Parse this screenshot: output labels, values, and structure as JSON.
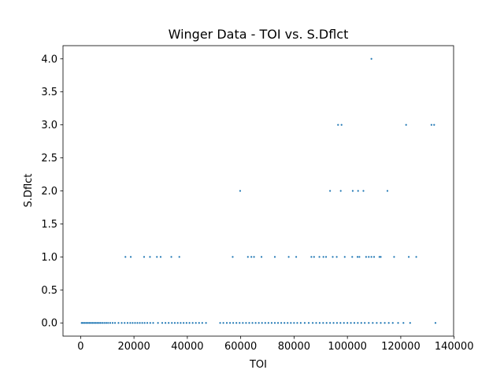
{
  "chart_data": {
    "type": "scatter",
    "title": "Winger Data - TOI vs. S.Dflct",
    "xlabel": "TOI",
    "ylabel": "S.Dflct",
    "xlim": [
      -6600,
      139800
    ],
    "ylim": [
      -0.2,
      4.2
    ],
    "xticks": [
      0,
      20000,
      40000,
      60000,
      80000,
      100000,
      120000,
      140000
    ],
    "xtick_labels": [
      "0",
      "20000",
      "40000",
      "60000",
      "80000",
      "100000",
      "120000",
      "140000"
    ],
    "yticks": [
      0.0,
      0.5,
      1.0,
      1.5,
      2.0,
      2.5,
      3.0,
      3.5,
      4.0
    ],
    "ytick_labels": [
      "0.0",
      "0.5",
      "1.0",
      "1.5",
      "2.0",
      "2.5",
      "3.0",
      "3.5",
      "4.0"
    ],
    "grid": false,
    "marker_color": "#1f77b4",
    "points": [
      {
        "x": 109000,
        "y": 4
      },
      {
        "x": 96500,
        "y": 3
      },
      {
        "x": 97800,
        "y": 3
      },
      {
        "x": 122000,
        "y": 3
      },
      {
        "x": 131500,
        "y": 3
      },
      {
        "x": 132500,
        "y": 3
      },
      {
        "x": 59800,
        "y": 2
      },
      {
        "x": 93500,
        "y": 2
      },
      {
        "x": 97500,
        "y": 2
      },
      {
        "x": 102000,
        "y": 2
      },
      {
        "x": 104000,
        "y": 2
      },
      {
        "x": 106000,
        "y": 2
      },
      {
        "x": 115000,
        "y": 2
      },
      {
        "x": 16800,
        "y": 1
      },
      {
        "x": 18800,
        "y": 1
      },
      {
        "x": 23800,
        "y": 1
      },
      {
        "x": 26000,
        "y": 1
      },
      {
        "x": 28600,
        "y": 1
      },
      {
        "x": 30000,
        "y": 1
      },
      {
        "x": 34000,
        "y": 1
      },
      {
        "x": 37000,
        "y": 1
      },
      {
        "x": 57000,
        "y": 1
      },
      {
        "x": 62700,
        "y": 1
      },
      {
        "x": 64000,
        "y": 1
      },
      {
        "x": 65000,
        "y": 1
      },
      {
        "x": 67800,
        "y": 1
      },
      {
        "x": 72800,
        "y": 1
      },
      {
        "x": 78000,
        "y": 1
      },
      {
        "x": 80800,
        "y": 1
      },
      {
        "x": 86500,
        "y": 1
      },
      {
        "x": 87500,
        "y": 1
      },
      {
        "x": 89500,
        "y": 1
      },
      {
        "x": 91000,
        "y": 1
      },
      {
        "x": 92000,
        "y": 1
      },
      {
        "x": 94500,
        "y": 1
      },
      {
        "x": 96000,
        "y": 1
      },
      {
        "x": 99000,
        "y": 1
      },
      {
        "x": 101800,
        "y": 1
      },
      {
        "x": 103800,
        "y": 1
      },
      {
        "x": 104500,
        "y": 1
      },
      {
        "x": 107000,
        "y": 1
      },
      {
        "x": 108000,
        "y": 1
      },
      {
        "x": 109000,
        "y": 1
      },
      {
        "x": 110000,
        "y": 1
      },
      {
        "x": 112000,
        "y": 1
      },
      {
        "x": 112500,
        "y": 1
      },
      {
        "x": 117500,
        "y": 1
      },
      {
        "x": 123000,
        "y": 1
      },
      {
        "x": 125800,
        "y": 1
      },
      {
        "x": 400,
        "y": 0
      },
      {
        "x": 900,
        "y": 0
      },
      {
        "x": 1500,
        "y": 0
      },
      {
        "x": 2100,
        "y": 0
      },
      {
        "x": 2700,
        "y": 0
      },
      {
        "x": 3300,
        "y": 0
      },
      {
        "x": 3900,
        "y": 0
      },
      {
        "x": 4500,
        "y": 0
      },
      {
        "x": 5100,
        "y": 0
      },
      {
        "x": 5700,
        "y": 0
      },
      {
        "x": 6300,
        "y": 0
      },
      {
        "x": 6900,
        "y": 0
      },
      {
        "x": 7500,
        "y": 0
      },
      {
        "x": 8200,
        "y": 0
      },
      {
        "x": 8900,
        "y": 0
      },
      {
        "x": 9600,
        "y": 0
      },
      {
        "x": 10300,
        "y": 0
      },
      {
        "x": 11100,
        "y": 0
      },
      {
        "x": 12000,
        "y": 0
      },
      {
        "x": 12900,
        "y": 0
      },
      {
        "x": 14200,
        "y": 0
      },
      {
        "x": 15400,
        "y": 0
      },
      {
        "x": 16500,
        "y": 0
      },
      {
        "x": 17600,
        "y": 0
      },
      {
        "x": 18600,
        "y": 0
      },
      {
        "x": 19500,
        "y": 0
      },
      {
        "x": 20400,
        "y": 0
      },
      {
        "x": 21300,
        "y": 0
      },
      {
        "x": 22200,
        "y": 0
      },
      {
        "x": 23100,
        "y": 0
      },
      {
        "x": 24000,
        "y": 0
      },
      {
        "x": 25000,
        "y": 0
      },
      {
        "x": 26100,
        "y": 0
      },
      {
        "x": 27200,
        "y": 0
      },
      {
        "x": 29000,
        "y": 0
      },
      {
        "x": 30600,
        "y": 0
      },
      {
        "x": 31800,
        "y": 0
      },
      {
        "x": 33000,
        "y": 0
      },
      {
        "x": 34200,
        "y": 0
      },
      {
        "x": 35300,
        "y": 0
      },
      {
        "x": 36400,
        "y": 0
      },
      {
        "x": 37500,
        "y": 0
      },
      {
        "x": 38600,
        "y": 0
      },
      {
        "x": 39700,
        "y": 0
      },
      {
        "x": 40800,
        "y": 0
      },
      {
        "x": 42000,
        "y": 0
      },
      {
        "x": 43200,
        "y": 0
      },
      {
        "x": 44400,
        "y": 0
      },
      {
        "x": 45600,
        "y": 0
      },
      {
        "x": 47000,
        "y": 0
      },
      {
        "x": 52300,
        "y": 0
      },
      {
        "x": 53500,
        "y": 0
      },
      {
        "x": 54800,
        "y": 0
      },
      {
        "x": 56000,
        "y": 0
      },
      {
        "x": 57200,
        "y": 0
      },
      {
        "x": 58400,
        "y": 0
      },
      {
        "x": 59600,
        "y": 0
      },
      {
        "x": 60800,
        "y": 0
      },
      {
        "x": 62000,
        "y": 0
      },
      {
        "x": 63200,
        "y": 0
      },
      {
        "x": 64400,
        "y": 0
      },
      {
        "x": 65600,
        "y": 0
      },
      {
        "x": 66800,
        "y": 0
      },
      {
        "x": 68000,
        "y": 0
      },
      {
        "x": 69200,
        "y": 0
      },
      {
        "x": 70400,
        "y": 0
      },
      {
        "x": 71600,
        "y": 0
      },
      {
        "x": 72800,
        "y": 0
      },
      {
        "x": 74000,
        "y": 0
      },
      {
        "x": 75200,
        "y": 0
      },
      {
        "x": 76400,
        "y": 0
      },
      {
        "x": 77600,
        "y": 0
      },
      {
        "x": 78800,
        "y": 0
      },
      {
        "x": 80000,
        "y": 0
      },
      {
        "x": 81200,
        "y": 0
      },
      {
        "x": 82500,
        "y": 0
      },
      {
        "x": 84000,
        "y": 0
      },
      {
        "x": 85500,
        "y": 0
      },
      {
        "x": 87000,
        "y": 0
      },
      {
        "x": 88300,
        "y": 0
      },
      {
        "x": 89600,
        "y": 0
      },
      {
        "x": 90900,
        "y": 0
      },
      {
        "x": 92200,
        "y": 0
      },
      {
        "x": 93500,
        "y": 0
      },
      {
        "x": 94800,
        "y": 0
      },
      {
        "x": 96100,
        "y": 0
      },
      {
        "x": 97400,
        "y": 0
      },
      {
        "x": 98700,
        "y": 0
      },
      {
        "x": 100000,
        "y": 0
      },
      {
        "x": 101300,
        "y": 0
      },
      {
        "x": 102600,
        "y": 0
      },
      {
        "x": 103900,
        "y": 0
      },
      {
        "x": 105200,
        "y": 0
      },
      {
        "x": 106500,
        "y": 0
      },
      {
        "x": 108000,
        "y": 0
      },
      {
        "x": 109500,
        "y": 0
      },
      {
        "x": 111000,
        "y": 0
      },
      {
        "x": 112500,
        "y": 0
      },
      {
        "x": 114000,
        "y": 0
      },
      {
        "x": 115500,
        "y": 0
      },
      {
        "x": 117000,
        "y": 0
      },
      {
        "x": 119000,
        "y": 0
      },
      {
        "x": 121000,
        "y": 0
      },
      {
        "x": 123500,
        "y": 0
      },
      {
        "x": 133000,
        "y": 0
      }
    ]
  }
}
